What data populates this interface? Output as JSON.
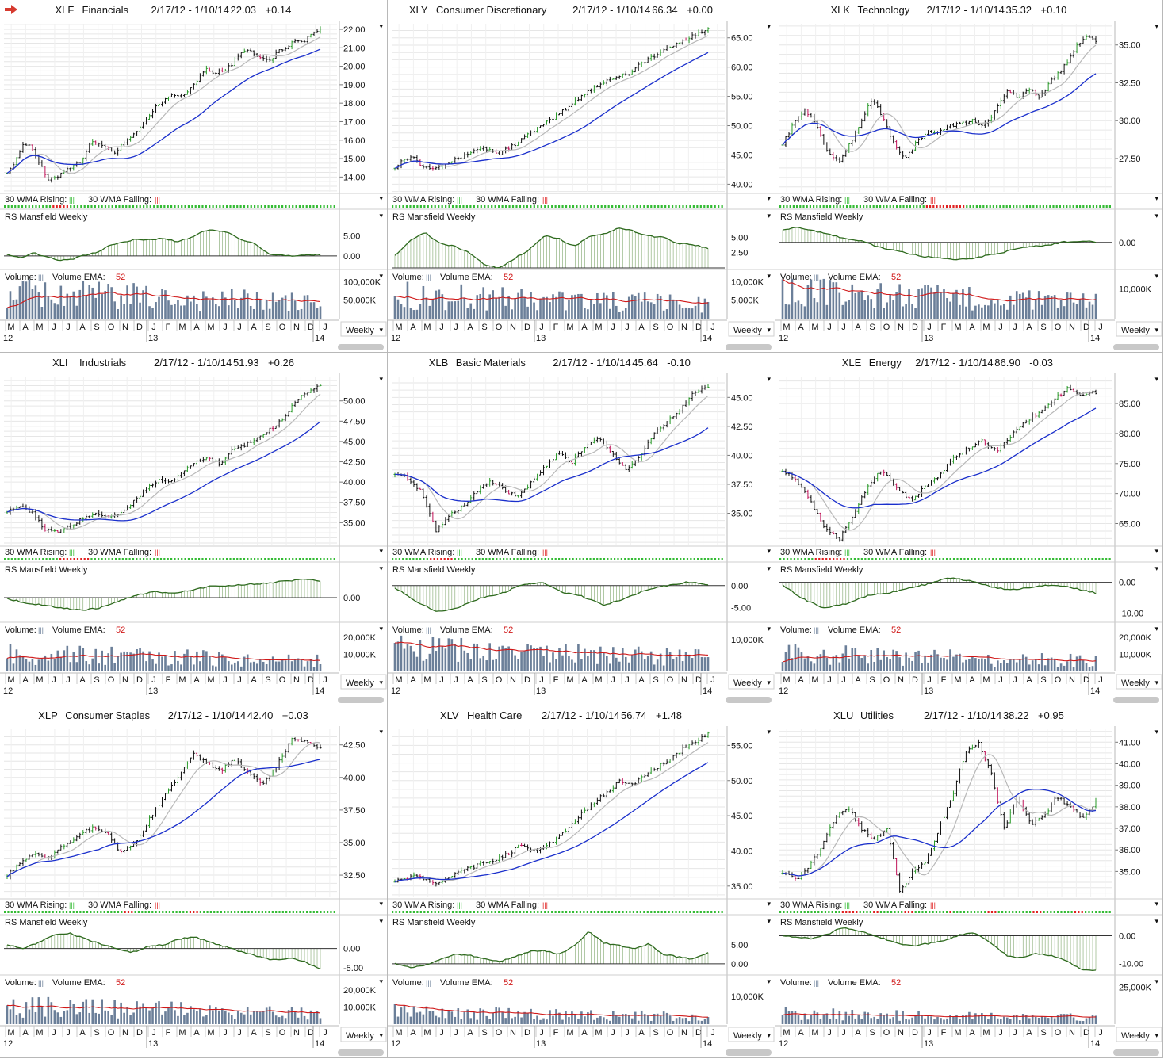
{
  "toolbar": {
    "alert_icon": "red-arrow-icon"
  },
  "labels": {
    "wma_rising": "30 WMA Rising:",
    "wma_falling": "30 WMA Falling:",
    "rs": "RS Mansfield Weekly",
    "volume": "Volume:",
    "volume_ema": "Volume EMA:",
    "ema_period": "52",
    "weekly": "Weekly",
    "year_labels": [
      "12",
      "13",
      "14"
    ],
    "month_labels": [
      "M",
      "A",
      "M",
      "J",
      "J",
      "A",
      "S",
      "O",
      "N",
      "D",
      "J",
      "F",
      "M",
      "A",
      "M",
      "J",
      "J",
      "A",
      "S",
      "O",
      "N",
      "D",
      "J"
    ]
  },
  "colors": {
    "up_bar": "#2a9a2a",
    "down_bar": "#c0145a",
    "bar": "#111111",
    "wma30": "#1a2fcc",
    "wma10": "#b8b8b8",
    "rs_line": "#2e6a1e",
    "volume_bar": "#6b7f99",
    "volume_ema": "#d01818",
    "rising": "#33bb33",
    "falling": "#e02020"
  },
  "chart_data": [
    {
      "type": "line",
      "symbol": "XLF",
      "name": "Financials",
      "range": "2/17/12 - 1/10/14",
      "last": "22.03",
      "change": "+0.14",
      "price": [
        14.3,
        14.8,
        15.9,
        15.6,
        14.7,
        13.8,
        14.0,
        14.4,
        14.6,
        14.9,
        15.8,
        15.9,
        15.6,
        15.3,
        15.8,
        16.1,
        16.6,
        17.1,
        17.8,
        18.1,
        18.5,
        18.4,
        18.6,
        19.2,
        19.9,
        19.6,
        19.7,
        20.0,
        20.5,
        21.0,
        20.6,
        20.4,
        20.3,
        20.9,
        21.0,
        21.5,
        21.3,
        21.8,
        22.0
      ],
      "price_ticks": [
        "22.00",
        "21.00",
        "20.00",
        "19.00",
        "18.00",
        "17.00",
        "16.00",
        "15.00",
        "14.00"
      ],
      "price_range": [
        13.2,
        22.3
      ],
      "rs": [
        0.5,
        -0.5,
        0.8,
        -0.2,
        -1.2,
        -0.8,
        0.2,
        1.0,
        2.8,
        3.5,
        4.2,
        4.0,
        4.5,
        3.5,
        4.5,
        6.2,
        6.5,
        5.8,
        4.0,
        3.0,
        0.5,
        0.2,
        0.0,
        0.2,
        0.3
      ],
      "rs_ticks": [
        "5.00",
        "0.00"
      ],
      "rs_range": [
        -3,
        8.5
      ],
      "volume_ticks": [
        "100,000K",
        "50,000K"
      ],
      "volume_range": [
        0,
        120000
      ],
      "volume_level": 55000,
      "wma_flags": "ggggggggggggggrrrrrggggggggggggggggggggggggggggggggggggggggggggggggggggggggggggggggggggggggggggg"
    },
    {
      "type": "line",
      "symbol": "XLY",
      "name": "Consumer Discretionary",
      "range": "2/17/12 - 1/10/14",
      "last": "66.34",
      "change": "+0.00",
      "price": [
        43.0,
        44.2,
        44.8,
        43.3,
        42.8,
        43.2,
        43.6,
        44.2,
        44.8,
        45.8,
        46.2,
        45.8,
        45.2,
        46.2,
        47.0,
        48.1,
        49.2,
        50.1,
        51.0,
        52.2,
        53.2,
        54.5,
        55.8,
        56.6,
        57.4,
        58.1,
        58.6,
        59.0,
        60.4,
        61.2,
        62.1,
        62.8,
        63.7,
        64.4,
        65.2,
        66.0,
        66.4
      ],
      "price_ticks": [
        "65.00",
        "60.00",
        "55.00",
        "50.00",
        "45.00",
        "40.00"
      ],
      "price_range": [
        38.7,
        67.4
      ],
      "rs": [
        2.0,
        4.5,
        5.8,
        4.0,
        3.5,
        2.5,
        0.5,
        0.0,
        1.5,
        3.0,
        5.2,
        4.8,
        3.5,
        5.0,
        5.5,
        6.5,
        6.0,
        5.2,
        5.0,
        4.0,
        3.8,
        3.2
      ],
      "rs_ticks": [
        "5.00",
        "2.50"
      ],
      "rs_range": [
        0,
        7.5
      ],
      "volume_ticks": [
        "10,000K",
        "5,000K"
      ],
      "volume_range": [
        0,
        12000
      ],
      "volume_level": 5000,
      "wma_flags": "gggggggggggggggggggggggggggggggggggggggggggggggggggggggggggggggggggggggggggggggggggggggggggggg"
    },
    {
      "type": "line",
      "symbol": "XLK",
      "name": "Technology",
      "range": "2/17/12 - 1/10/14",
      "last": "35.32",
      "change": "+0.10",
      "price": [
        28.5,
        29.8,
        30.8,
        29.7,
        28.0,
        27.2,
        28.5,
        29.9,
        31.5,
        30.1,
        28.4,
        27.5,
        28.6,
        29.2,
        29.3,
        29.7,
        29.8,
        30.0,
        29.6,
        30.7,
        32.0,
        31.5,
        32.1,
        31.6,
        32.6,
        33.4,
        34.6,
        35.6,
        35.3
      ],
      "price_ticks": [
        "35.00",
        "32.50",
        "30.00",
        "27.50"
      ],
      "price_range": [
        25.3,
        36.4
      ],
      "rs": [
        2.5,
        3.0,
        2.2,
        1.5,
        0.8,
        0.3,
        -0.8,
        -1.5,
        -2.2,
        -2.8,
        -3.0,
        -3.5,
        -3.2,
        -2.6,
        -2.0,
        -1.2,
        -0.8,
        -0.5,
        0.1,
        0.3,
        0.1
      ],
      "rs_ticks": [
        "0.00"
      ],
      "rs_range": [
        -5.0,
        4.0
      ],
      "volume_ticks": [
        "10,000K"
      ],
      "volume_range": [
        0,
        15000
      ],
      "volume_level": 7000,
      "wma_flags": "ggggggggggggggggggggggggggggggggggggggggggggrrrrrrrrrrrrgggggggggggggggggggggggggggggggggggggggggggg"
    },
    {
      "type": "line",
      "symbol": "XLI",
      "name": "Industrials",
      "range": "2/17/12 - 1/10/14",
      "last": "51.93",
      "change": "+0.26",
      "price": [
        36.5,
        37.0,
        36.2,
        34.2,
        33.8,
        34.5,
        35.5,
        36.2,
        35.8,
        36.0,
        37.5,
        39.0,
        40.2,
        40.0,
        41.0,
        42.5,
        43.0,
        42.2,
        44.0,
        44.5,
        45.5,
        46.5,
        47.8,
        50.0,
        51.2,
        51.9
      ],
      "price_ticks": [
        "50.00",
        "47.50",
        "45.00",
        "42.50",
        "40.00",
        "37.50",
        "35.00"
      ],
      "price_range": [
        32.3,
        53.0
      ],
      "rs": [
        -0.2,
        -1.0,
        -1.5,
        -2.0,
        -2.5,
        -2.0,
        -0.8,
        0.5,
        1.2,
        0.8,
        1.5,
        2.2,
        2.4,
        2.6,
        2.8,
        3.2,
        3.6,
        3.3
      ],
      "rs_ticks": [
        "0.00"
      ],
      "rs_range": [
        -4.5,
        4.5
      ],
      "volume_ticks": [
        "20,000K",
        "10,000K"
      ],
      "volume_range": [
        0,
        26000
      ],
      "volume_level": 8000,
      "wma_flags": "ggggggggggggggggrrrrrrrrrggggggggggggggggggggggggggggggggggggggggggggggggggggggggggggggggggggggg"
    },
    {
      "type": "line",
      "symbol": "XLB",
      "name": "Basic Materials",
      "range": "2/17/12 - 1/10/14",
      "last": "45.64",
      "change": "-0.10",
      "price": [
        38.5,
        38.0,
        36.8,
        33.5,
        34.8,
        35.6,
        36.9,
        37.8,
        37.0,
        36.4,
        37.6,
        38.9,
        40.2,
        39.4,
        40.8,
        41.6,
        40.1,
        38.8,
        40.0,
        41.8,
        43.0,
        44.0,
        45.5,
        45.8
      ],
      "price_ticks": [
        "45.00",
        "42.50",
        "40.00",
        "37.50",
        "35.00"
      ],
      "price_range": [
        32.3,
        46.8
      ],
      "rs": [
        -0.5,
        -3.5,
        -6.0,
        -5.0,
        -3.0,
        -2.0,
        0.0,
        0.8,
        -1.5,
        -2.5,
        -4.5,
        -3.0,
        -1.0,
        0.0,
        0.8,
        0.3
      ],
      "rs_ticks": [
        "0.00",
        "-5.00"
      ],
      "rs_range": [
        -8,
        2.5
      ],
      "volume_ticks": [
        "10,000K"
      ],
      "volume_range": [
        0,
        14000
      ],
      "volume_level": 5500,
      "wma_flags": "gggggggggggrrrrrrrgggggggggggggggggggggggggggggggggggggggggggggggggggggggggggggggggggggggggggggg"
    },
    {
      "type": "line",
      "symbol": "XLE",
      "name": "Energy",
      "range": "2/17/12 - 1/10/14",
      "last": "86.90",
      "change": "-0.03",
      "price": [
        74.0,
        72.0,
        68.5,
        64.0,
        62.5,
        66.5,
        71.5,
        74.0,
        71.0,
        69.0,
        71.0,
        73.0,
        76.0,
        77.5,
        79.0,
        77.0,
        79.5,
        82.0,
        83.5,
        85.5,
        87.5,
        86.5,
        86.9
      ],
      "price_ticks": [
        "85.00",
        "80.00",
        "75.00",
        "70.00",
        "65.00"
      ],
      "price_range": [
        61.5,
        89.5
      ],
      "rs": [
        -1.0,
        -5.5,
        -8.5,
        -7.0,
        -4.5,
        -3.5,
        -2.0,
        -0.5,
        1.5,
        0.5,
        -1.5,
        -2.5,
        -1.5,
        -0.8,
        -2.0,
        -3.5
      ],
      "rs_ticks": [
        "0.00",
        "-10.00"
      ],
      "rs_range": [
        -12.5,
        2.5
      ],
      "volume_ticks": [
        "20,000K",
        "10,000K"
      ],
      "volume_range": [
        0,
        26000
      ],
      "volume_level": 8000,
      "wma_flags": "ggggggggggrrrrrrrrrggggggggggggggggggggggggggggggggggggggggggggggggggggggggggggggggggggggggggg"
    },
    {
      "type": "line",
      "symbol": "XLP",
      "name": "Consumer Staples",
      "range": "2/17/12 - 1/10/14",
      "last": "42.40",
      "change": "+0.03",
      "price": [
        32.5,
        33.5,
        34.2,
        33.8,
        34.8,
        35.5,
        36.2,
        35.8,
        34.2,
        35.0,
        36.8,
        38.5,
        40.0,
        41.8,
        41.2,
        40.5,
        41.5,
        40.2,
        39.5,
        41.0,
        43.0,
        42.8,
        42.3
      ],
      "price_ticks": [
        "42.50",
        "40.00",
        "37.50",
        "35.00",
        "32.50"
      ],
      "price_range": [
        30.8,
        43.7
      ],
      "rs": [
        1.0,
        0.0,
        1.5,
        3.5,
        4.0,
        2.5,
        1.2,
        0.0,
        -1.0,
        0.5,
        1.0,
        2.5,
        3.0,
        1.5,
        0.5,
        -1.0,
        -2.0,
        -3.0,
        -2.5,
        -3.5,
        -5.5
      ],
      "rs_ticks": [
        "0.00",
        "-5.00"
      ],
      "rs_range": [
        -6.5,
        5.5
      ],
      "volume_ticks": [
        "20,000K",
        "10,000K"
      ],
      "volume_range": [
        0,
        26000
      ],
      "volume_level": 8000,
      "wma_flags": "gggggggggggggggggggggggggggggggggggrrrggggggggggggggggrrrgggggggggggggggggggggggggggggggggggggggg"
    },
    {
      "type": "line",
      "symbol": "XLV",
      "name": "Health Care",
      "range": "2/17/12 - 1/10/14",
      "last": "56.74",
      "change": "+1.48",
      "price": [
        35.8,
        36.2,
        36.4,
        35.4,
        35.8,
        36.9,
        37.6,
        38.2,
        38.8,
        39.5,
        40.8,
        40.2,
        40.5,
        41.8,
        43.5,
        45.5,
        47.0,
        48.5,
        50.0,
        49.5,
        50.8,
        52.0,
        53.0,
        54.5,
        55.5,
        56.7
      ],
      "price_ticks": [
        "55.00",
        "50.00",
        "45.00",
        "40.00",
        "35.00"
      ],
      "price_range": [
        33.4,
        57.3
      ],
      "rs": [
        0.0,
        -1.0,
        -0.5,
        1.0,
        2.5,
        2.2,
        1.5,
        0.5,
        1.8,
        3.2,
        3.5,
        2.5,
        4.5,
        8.5,
        5.5,
        4.8,
        4.0,
        5.2,
        2.5,
        1.8,
        1.2,
        2.8
      ],
      "rs_ticks": [
        "5.00",
        "0.00"
      ],
      "rs_range": [
        -2.5,
        9.5
      ],
      "volume_ticks": [
        "10,000K"
      ],
      "volume_range": [
        0,
        16000
      ],
      "volume_level": 3500,
      "wma_flags": "gggggggggggggggggggggggggggggggggggggggggggggggggggggggggggggggggggggggggggggggggggggggggggggg"
    },
    {
      "type": "line",
      "symbol": "XLU",
      "name": "Utilities",
      "range": "2/17/12 - 1/10/14",
      "last": "38.22",
      "change": "+0.95",
      "price": [
        35.0,
        34.6,
        35.2,
        36.2,
        37.5,
        38.0,
        37.0,
        36.5,
        37.0,
        34.0,
        35.0,
        35.5,
        37.0,
        38.5,
        40.5,
        41.0,
        39.5,
        37.0,
        38.5,
        37.2,
        37.5,
        38.5,
        38.0,
        37.5,
        38.2
      ],
      "price_ticks": [
        "41.00",
        "40.00",
        "39.00",
        "38.00",
        "37.00",
        "36.00",
        "35.00"
      ],
      "price_range": [
        33.8,
        41.6
      ],
      "rs": [
        0.0,
        -0.5,
        -1.0,
        0.5,
        3.0,
        2.0,
        0.5,
        -1.5,
        -3.0,
        -3.5,
        -2.5,
        -1.5,
        0.5,
        1.0,
        -3.0,
        -7.0,
        -8.0,
        -6.5,
        -7.0,
        -9.0,
        -12.0,
        -12.5
      ],
      "rs_ticks": [
        "0.00",
        "-10.00"
      ],
      "rs_range": [
        -13.5,
        3
      ],
      "volume_ticks": [
        "25,000K"
      ],
      "volume_range": [
        0,
        30000
      ],
      "volume_level": 5500,
      "wma_flags": "ggggggggggggggggggrrrrrggggrrgggggggrrrggggggggggrggggggggggrrrggggggggggrrrgggggggggrrrgggggggg"
    }
  ]
}
